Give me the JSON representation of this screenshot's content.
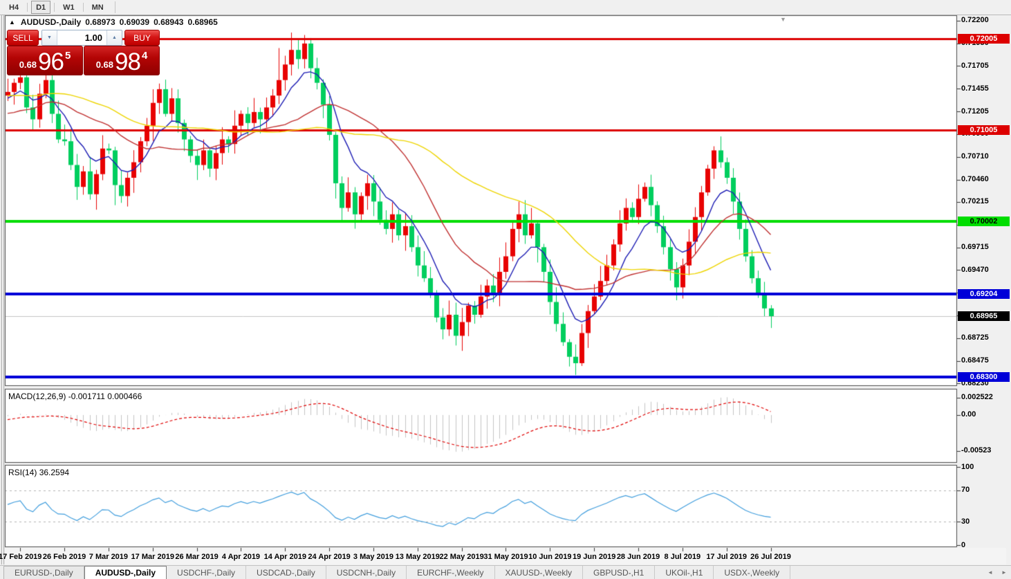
{
  "toolbar": {
    "timeframes": [
      {
        "label": "H4",
        "active": false
      },
      {
        "label": "D1",
        "active": true
      },
      {
        "label": "W1",
        "active": false
      },
      {
        "label": "MN",
        "active": false
      }
    ]
  },
  "icons": {
    "collapse": "▲",
    "shift_marker": "▼",
    "vol_down": "▼",
    "vol_up": "▲",
    "scroll_left": "◄",
    "scroll_right": "►"
  },
  "chart_header": {
    "symbol": "AUDUSD-,Daily",
    "open": "0.68973",
    "high": "0.69039",
    "low": "0.68943",
    "close": "0.68965"
  },
  "trade_panel": {
    "sell_label": "SELL",
    "buy_label": "BUY",
    "volume": "1.00",
    "sell_small": "0.68",
    "sell_big": "96",
    "sell_sup": "5",
    "buy_small": "0.68",
    "buy_big": "98",
    "buy_sup": "4"
  },
  "price_axis": {
    "items": [
      {
        "label": "0.72200",
        "price": 0.722
      },
      {
        "label": "0.71950",
        "price": 0.7195
      },
      {
        "label": "0.71705",
        "price": 0.71705
      },
      {
        "label": "0.71455",
        "price": 0.71455
      },
      {
        "label": "0.71205",
        "price": 0.71205
      },
      {
        "label": "0.70960",
        "price": 0.7096
      },
      {
        "label": "0.70710",
        "price": 0.7071
      },
      {
        "label": "0.70460",
        "price": 0.7046
      },
      {
        "label": "0.70215",
        "price": 0.70215
      },
      {
        "label": "0.69965",
        "price": 0.69965
      },
      {
        "label": "0.69715",
        "price": 0.69715
      },
      {
        "label": "0.69470",
        "price": 0.6947
      },
      {
        "label": "0.69220",
        "price": 0.6922
      },
      {
        "label": "0.68970",
        "price": 0.6897
      },
      {
        "label": "0.68725",
        "price": 0.68725
      },
      {
        "label": "0.68475",
        "price": 0.68475
      },
      {
        "label": "0.68230",
        "price": 0.6823
      }
    ]
  },
  "hlines": [
    {
      "label": "0.72005",
      "price": 0.72005,
      "color": "#dd0000",
      "text": "#ffffff",
      "thickness": 3
    },
    {
      "label": "0.71005",
      "price": 0.71005,
      "color": "#dd0000",
      "text": "#ffffff",
      "thickness": 3
    },
    {
      "label": "0.70002",
      "price": 0.70002,
      "color": "#00dd00",
      "text": "#000000",
      "thickness": 4
    },
    {
      "label": "0.69204",
      "price": 0.69204,
      "color": "#0000d8",
      "text": "#ffffff",
      "thickness": 4
    },
    {
      "label": "0.68300",
      "price": 0.683,
      "color": "#0000d8",
      "text": "#ffffff",
      "thickness": 4
    }
  ],
  "current_price": {
    "label": "0.68965",
    "price": 0.68965,
    "badge_bg": "#000000",
    "badge_text": "#ffffff",
    "line_color": "#c4c4c4"
  },
  "date_axis": {
    "labels": [
      "17 Feb 2019",
      "26 Feb 2019",
      "7 Mar 2019",
      "17 Mar 2019",
      "26 Mar 2019",
      "4 Apr 2019",
      "14 Apr 2019",
      "24 Apr 2019",
      "3 May 2019",
      "13 May 2019",
      "22 May 2019",
      "31 May 2019",
      "10 Jun 2019",
      "19 Jun 2019",
      "28 Jun 2019",
      "8 Jul 2019",
      "17 Jul 2019",
      "26 Jul 2019"
    ]
  },
  "macd_panel": {
    "name": "MACD(12,26,9)",
    "values": "-0.001711 0.000466",
    "axis": [
      {
        "label": "0.002522",
        "value": 0.002522
      },
      {
        "label": "0.00",
        "value": 0.0
      },
      {
        "label": "-0.00523",
        "value": -0.00523
      }
    ]
  },
  "rsi_panel": {
    "name": "RSI(14)",
    "value": "36.2594",
    "axis": [
      {
        "label": "100",
        "value": 100
      },
      {
        "label": "70",
        "value": 70
      },
      {
        "label": "30",
        "value": 30
      },
      {
        "label": "0",
        "value": 0
      }
    ],
    "dashed_levels": [
      70,
      30
    ]
  },
  "tabs": {
    "items": [
      {
        "label": "EURUSD-,Daily",
        "active": false
      },
      {
        "label": "AUDUSD-,Daily",
        "active": true
      },
      {
        "label": "USDCHF-,Daily",
        "active": false
      },
      {
        "label": "USDCAD-,Daily",
        "active": false
      },
      {
        "label": "USDCNH-,Daily",
        "active": false
      },
      {
        "label": "EURCHF-,Weekly",
        "active": false
      },
      {
        "label": "XAUUSD-,Weekly",
        "active": false
      },
      {
        "label": "GBPUSD-,H1",
        "active": false
      },
      {
        "label": "UKOil-,H1",
        "active": false
      },
      {
        "label": "USDX-,Weekly",
        "active": false
      }
    ]
  },
  "colors": {
    "candle_up": "#e80202",
    "candle_down": "#00ce5e",
    "ma_fast": "#1c1cb4",
    "ma_mid": "#c03030",
    "ma_slow": "#eed500",
    "macd_hist": "#c4c4c4",
    "macd_signal": "#e00000",
    "rsi_line": "#3f9ddd",
    "panel_border": "#4a4a4a",
    "panel_bg": "#ffffff"
  },
  "chart_data": {
    "type": "candlestick",
    "symbol": "AUDUSD-",
    "timeframe": "Daily",
    "visible_price_range": {
      "min": 0.682,
      "max": 0.7226
    },
    "warmup_closes": [
      0.7185,
      0.7192,
      0.7178,
      0.7165,
      0.7172,
      0.7158,
      0.7145,
      0.7152,
      0.7138,
      0.7125,
      0.7112,
      0.7098,
      0.7085,
      0.7092,
      0.7105,
      0.7118,
      0.7125,
      0.7138,
      0.7152,
      0.7165,
      0.7178,
      0.7192,
      0.7205,
      0.7218,
      0.7225,
      0.7212,
      0.7198,
      0.7185,
      0.7172,
      0.7158,
      0.7145,
      0.7132,
      0.7118,
      0.7105,
      0.7092,
      0.7078,
      0.7085,
      0.7098,
      0.7112,
      0.7125,
      0.7138,
      0.7125,
      0.7112,
      0.7098,
      0.7112,
      0.7125,
      0.7138,
      0.7152,
      0.7145,
      0.7138
    ],
    "closes": [
      0.7142,
      0.7152,
      0.7158,
      0.7125,
      0.7112,
      0.714,
      0.7155,
      0.7118,
      0.709,
      0.7088,
      0.7062,
      0.7038,
      0.7055,
      0.703,
      0.7052,
      0.708,
      0.7078,
      0.704,
      0.7028,
      0.7048,
      0.7065,
      0.7088,
      0.7105,
      0.713,
      0.7145,
      0.7118,
      0.7135,
      0.7108,
      0.709,
      0.7072,
      0.7062,
      0.7078,
      0.7058,
      0.7075,
      0.709,
      0.7085,
      0.7105,
      0.7118,
      0.7108,
      0.712,
      0.7112,
      0.7125,
      0.7138,
      0.7155,
      0.7172,
      0.7188,
      0.7178,
      0.7195,
      0.7168,
      0.7152,
      0.7128,
      0.7095,
      0.7042,
      0.7015,
      0.7032,
      0.7008,
      0.7028,
      0.7042,
      0.7022,
      0.7002,
      0.6992,
      0.7008,
      0.6985,
      0.6995,
      0.6972,
      0.6952,
      0.6938,
      0.692,
      0.6895,
      0.6882,
      0.6898,
      0.6875,
      0.689,
      0.6908,
      0.6898,
      0.6918,
      0.693,
      0.6922,
      0.6945,
      0.6962,
      0.6992,
      0.7008,
      0.6985,
      0.6998,
      0.6972,
      0.6945,
      0.6912,
      0.6888,
      0.6868,
      0.6852,
      0.6845,
      0.6878,
      0.6902,
      0.6918,
      0.6935,
      0.6952,
      0.6975,
      0.6998,
      0.7015,
      0.7005,
      0.7025,
      0.7038,
      0.7018,
      0.6995,
      0.6972,
      0.6948,
      0.6928,
      0.6952,
      0.6978,
      0.7005,
      0.7032,
      0.7058,
      0.7078,
      0.7065,
      0.7048,
      0.7022,
      0.6992,
      0.6962,
      0.6938,
      0.692,
      0.6905,
      0.68965
    ],
    "wick_overrides": {
      "13": {
        "low": 0.7024
      },
      "17": {
        "low": 0.7018
      },
      "43": {
        "high": 0.719
      },
      "45": {
        "high": 0.7207
      },
      "81": {
        "high": 0.7022
      },
      "90": {
        "low": 0.6832
      }
    },
    "moving_averages": [
      {
        "name": "fast",
        "method": "ema",
        "period": 8,
        "color": "#1c1cb4"
      },
      {
        "name": "mid",
        "method": "sma",
        "period": 20,
        "color": "#c03030"
      },
      {
        "name": "slow",
        "method": "sma",
        "period": 45,
        "color": "#eed500"
      }
    ],
    "macd": {
      "fast": 12,
      "slow": 26,
      "signal": 9,
      "scale_top": 0.00382,
      "scale_bottom": -0.00695
    },
    "rsi": {
      "period": 14
    }
  }
}
